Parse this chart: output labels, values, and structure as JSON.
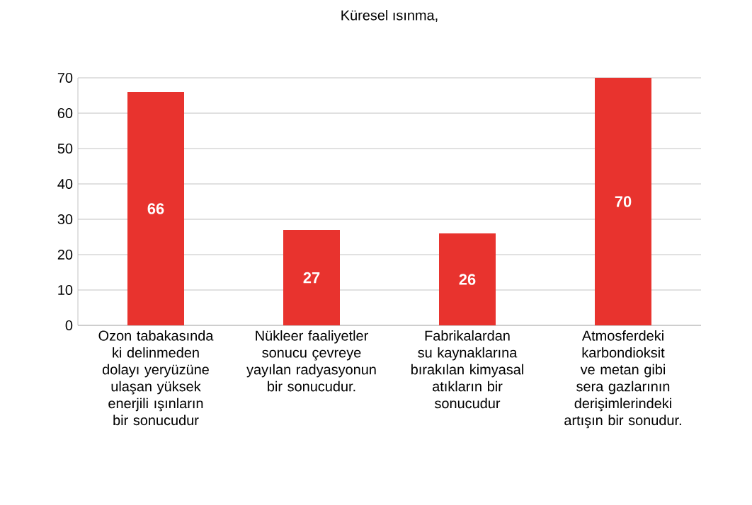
{
  "chart_data": {
    "type": "bar",
    "title": "Küresel ısınma,",
    "categories": [
      "Ozon tabakasında ki delinmeden dolayı yeryüzüne ulaşan yüksek enerjili ışınların bir sonucudur",
      "Nükleer faaliyetler sonucu çevreye yayılan radyasyonun bir sonucudur.",
      "Fabrikalardan su kaynaklarına bırakılan kimyasal atıkların bir sonucudur",
      "Atmosferdeki karbondioksit ve metan gibi sera gazlarının derişimlerindeki artışın bir sonudur."
    ],
    "values": [
      66,
      27,
      26,
      70
    ],
    "color": "#e8332e",
    "ylim": [
      0,
      70
    ],
    "yticks": [
      0,
      10,
      20,
      30,
      40,
      50,
      60,
      70
    ],
    "grid": "y",
    "data_labels": true
  }
}
